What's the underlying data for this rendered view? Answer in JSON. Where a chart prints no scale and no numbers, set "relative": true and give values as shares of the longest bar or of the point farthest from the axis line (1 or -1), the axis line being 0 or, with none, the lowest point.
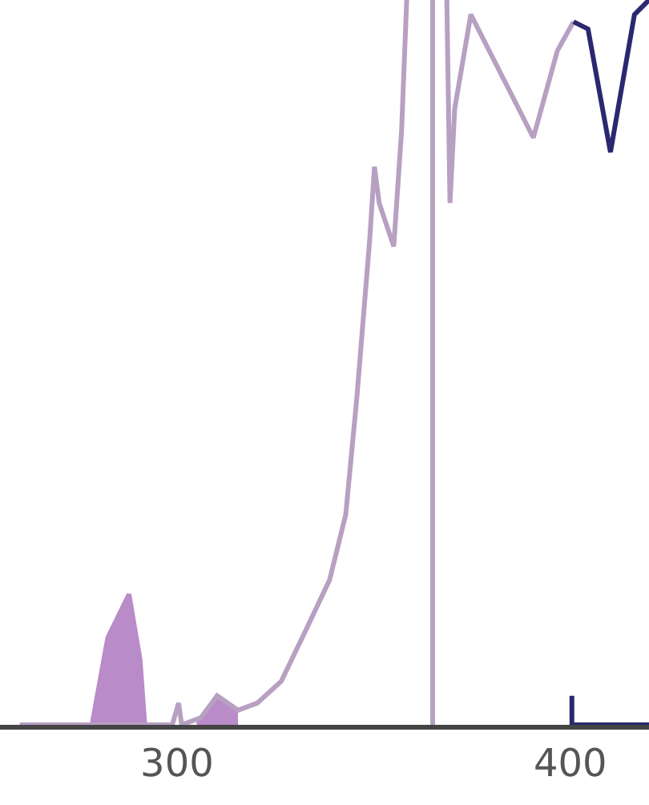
{
  "chart_data": {
    "type": "line",
    "relative": true,
    "xlim": [
      255,
      420
    ],
    "xticks": [
      300,
      400
    ],
    "marker": "none",
    "line_style": "solid",
    "series": [
      {
        "type": "area",
        "color": "#b98bc8",
        "x": [
          278.4,
          282.4,
          287.8,
          290.6,
          291.8
        ],
        "values": [
          0,
          0.12,
          0.18,
          0.09,
          0
        ]
      },
      {
        "type": "area",
        "color": "#b98bc8",
        "x": [
          305.3,
          310.2,
          315.5
        ],
        "values": [
          0,
          0.04,
          0.02
        ]
      },
      {
        "color": "#b7a0c2",
        "x": [
          260,
          275.5,
          293.9,
          298.8,
          300.4,
          301.2,
          306.1,
          310.2,
          315.5,
          320.4,
          326.5,
          332.7,
          338.8,
          342.9,
          345.7,
          349,
          350.2,
          351.4,
          355.1,
          357.1,
          358.4,
          363,
          368.6,
          369.4,
          370.6,
          374.7,
          390.6,
          396.7,
          400.8
        ],
        "values": [
          0,
          0,
          0,
          0,
          0.03,
          0,
          0.01,
          0.04,
          0.02,
          0.03,
          0.06,
          0.13,
          0.2,
          0.29,
          0.45,
          0.67,
          0.77,
          0.72,
          0.66,
          0.82,
          1.0,
          null,
          1.0,
          0.72,
          0.85,
          0.98,
          0.81,
          0.93,
          0.97
        ]
      },
      {
        "color": "#2b2870",
        "x": [
          400.8,
          404.5,
          410.2,
          416.3,
          420
        ],
        "values": [
          0.97,
          0.96,
          0.79,
          0.98,
          1.0
        ]
      },
      {
        "color": "#2b2870",
        "x": [
          400.4,
          400.4,
          420
        ],
        "values": [
          0.04,
          0,
          0
        ]
      }
    ],
    "ref_lines": [
      {
        "axis": "x",
        "value": 365,
        "color": "#b5a3c0",
        "line_style": "solid"
      }
    ]
  }
}
